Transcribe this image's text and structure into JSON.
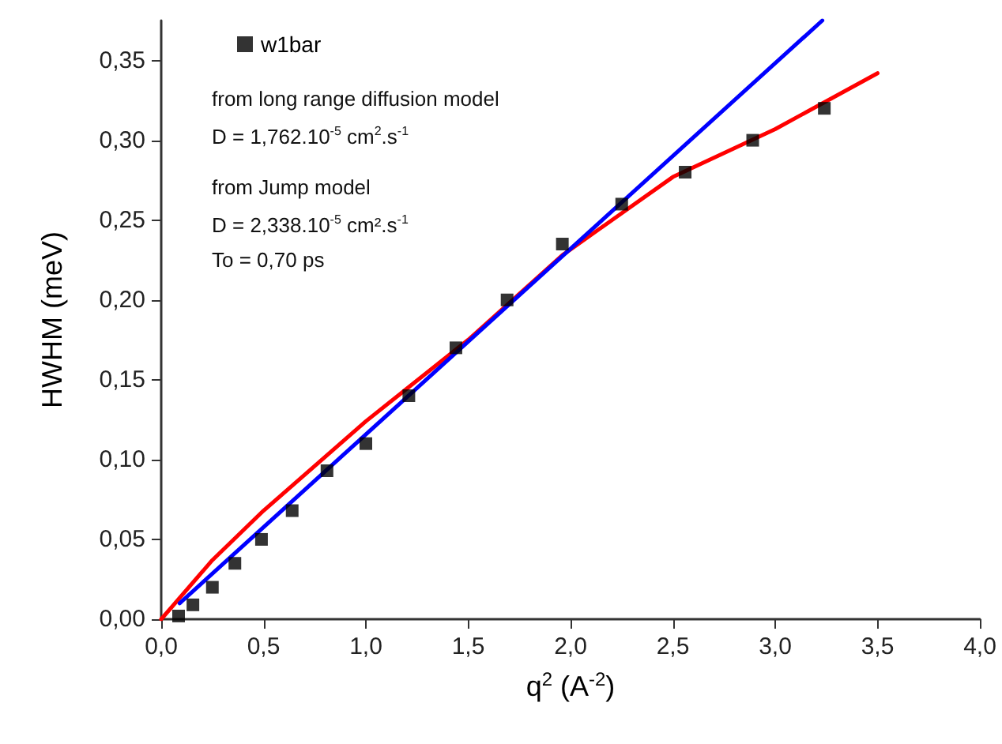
{
  "chart_data": {
    "type": "scatter",
    "xlabel": "q$^{2}$ (A$^{-2}$)",
    "ylabel": "HWHM (meV)",
    "x": [
      0.085,
      0.155,
      0.25,
      0.36,
      0.49,
      0.64,
      0.81,
      1.0,
      1.21,
      1.44,
      1.69,
      1.96,
      2.25,
      2.56,
      2.89,
      3.24
    ],
    "series": [
      {
        "name": "w1bar",
        "color": "#000000",
        "marker": "square",
        "values": [
          0.002,
          0.009,
          0.02,
          0.035,
          0.05,
          0.068,
          0.093,
          0.11,
          0.14,
          0.17,
          0.2,
          0.235,
          0.26,
          0.28,
          0.3,
          0.32
        ]
      },
      {
        "type": "line",
        "color": "#ff0000",
        "marker": "none",
        "x": [
          0,
          0.25,
          0.5,
          1.0,
          1.5,
          1.96,
          2.5,
          3.0,
          3.5
        ],
        "values": [
          0,
          0.037,
          0.068,
          0.124,
          0.175,
          0.228,
          0.277,
          0.307,
          0.342
        ]
      },
      {
        "type": "line",
        "color": "#0000ff",
        "marker": "none",
        "x": [
          0.09,
          3.23
        ],
        "values": [
          0.01,
          0.375
        ]
      }
    ],
    "xlim": [
      0,
      4.0
    ],
    "ylim": [
      0,
      0.375
    ],
    "xticks": [
      {
        "value": 0,
        "label": "0,0"
      },
      {
        "value": 0.5,
        "label": "0,5"
      },
      {
        "value": 1.0,
        "label": "1,0"
      },
      {
        "value": 1.5,
        "label": "1,5"
      },
      {
        "value": 2.0,
        "label": "2,0"
      },
      {
        "value": 2.5,
        "label": "2,5"
      },
      {
        "value": 3.0,
        "label": "3,0"
      },
      {
        "value": 3.5,
        "label": "3,5"
      },
      {
        "value": 4.0,
        "label": "4,0"
      }
    ],
    "yticks": [
      {
        "value": 0,
        "label": "0,00"
      },
      {
        "value": 0.05,
        "label": "0,05"
      },
      {
        "value": 0.1,
        "label": "0,10"
      },
      {
        "value": 0.15,
        "label": "0,15"
      },
      {
        "value": 0.2,
        "label": "0,20"
      },
      {
        "value": 0.25,
        "label": "0,25"
      },
      {
        "value": 0.3,
        "label": "0,30"
      },
      {
        "value": 0.35,
        "label": "0,35"
      }
    ],
    "annotations": [
      "from long range diffusion model",
      "D = 1,762.10$^{-5}$ cm$^{2}$.s$^{-1}$",
      "from Jump model",
      "D = 2,338.10$^{-5}$ cm².s$^{-1}$",
      "To = 0,70 ps"
    ],
    "legend": "top left",
    "grid": false
  }
}
